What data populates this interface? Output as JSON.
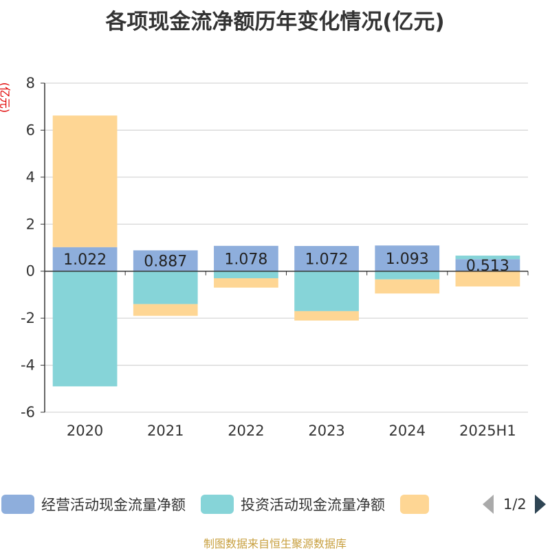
{
  "chart_data": {
    "type": "bar",
    "stacked": true,
    "title": "各项现金流净额历年变化情况(亿元)",
    "ylabel": "(亿元)",
    "xlabel": "",
    "categories": [
      "2020",
      "2021",
      "2022",
      "2023",
      "2024",
      "2025H1"
    ],
    "ylim": [
      -6,
      8
    ],
    "yticks": [
      -6,
      -4,
      -2,
      0,
      2,
      4,
      6,
      8
    ],
    "grid": true,
    "series": [
      {
        "name": "经营活动现金流量净额",
        "color": "#8eaedc",
        "values": [
          1.022,
          0.887,
          1.078,
          1.072,
          1.093,
          0.513
        ],
        "labels": [
          "1.022",
          "0.887",
          "1.078",
          "1.072",
          "1.093",
          "0.513"
        ]
      },
      {
        "name": "投资活动现金流量净额",
        "color": "#86d4d8",
        "values": [
          -4.9,
          -1.4,
          -0.3,
          -1.7,
          -0.35,
          0.15
        ]
      },
      {
        "name": "",
        "color": "#fed694",
        "values": [
          5.6,
          -0.5,
          -0.4,
          -0.4,
          -0.6,
          -0.65
        ]
      }
    ]
  },
  "legend": {
    "items": [
      {
        "label": "经营活动现金流量净额",
        "color": "#8eaedc"
      },
      {
        "label": "投资活动现金流量净额",
        "color": "#86d4d8"
      },
      {
        "label": "",
        "color": "#fed694"
      }
    ],
    "page_text": "1/2"
  },
  "source": "制图数据来自恒生聚源数据库"
}
